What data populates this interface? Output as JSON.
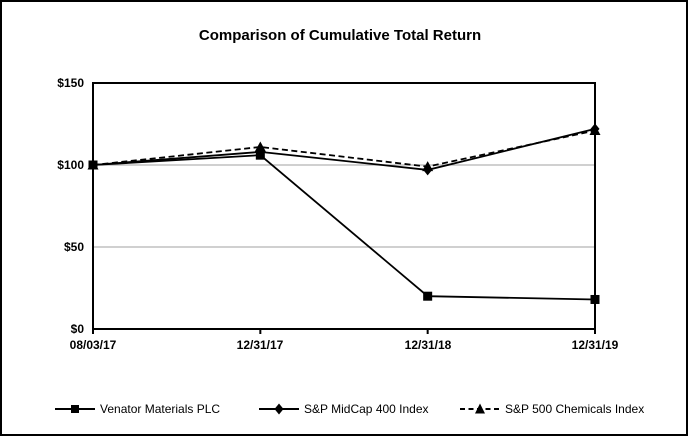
{
  "title": "Comparison of Cumulative Total Return",
  "colors": {
    "line": "#000000",
    "grid": "#b3b3b3",
    "background": "#ffffff",
    "border": "#000000"
  },
  "chart_data": {
    "type": "line",
    "title": "Comparison of Cumulative Total Return",
    "categories": [
      "08/03/17",
      "12/31/17",
      "12/31/18",
      "12/31/19"
    ],
    "series": [
      {
        "name": "Venator Materials PLC",
        "marker": "square",
        "line_style": "solid",
        "values": [
          100,
          106,
          20,
          18
        ]
      },
      {
        "name": "S&P MidCap 400 Index",
        "marker": "diamond",
        "line_style": "solid",
        "values": [
          100,
          108,
          97,
          122
        ]
      },
      {
        "name": "S&P 500 Chemicals Index",
        "marker": "triangle",
        "line_style": "dashed",
        "values": [
          100,
          111,
          99,
          121
        ]
      }
    ],
    "y_ticks": [
      "$0",
      "$50",
      "$100",
      "$150"
    ],
    "y_tick_values": [
      0,
      50,
      100,
      150
    ],
    "ylim": [
      0,
      150
    ],
    "gridlines_at": [
      50,
      100
    ],
    "grid": "horizontal",
    "legend_position": "bottom"
  }
}
